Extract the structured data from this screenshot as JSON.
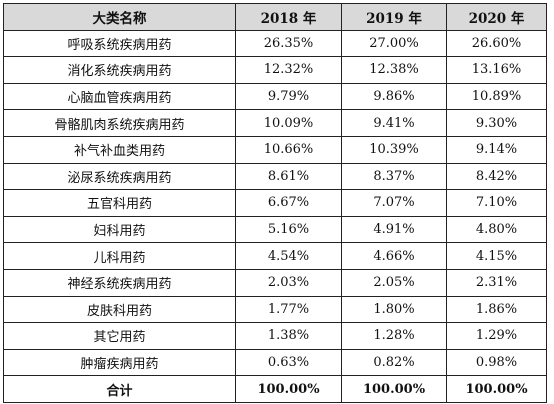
{
  "table": {
    "headers": [
      "大类名称",
      "2018 年",
      "2019 年",
      "2020 年"
    ],
    "rows": [
      [
        "呼吸系统疾病用药",
        "26.35%",
        "27.00%",
        "26.60%"
      ],
      [
        "消化系统疾病用药",
        "12.32%",
        "12.38%",
        "13.16%"
      ],
      [
        "心脑血管疾病用药",
        "9.79%",
        "9.86%",
        "10.89%"
      ],
      [
        "骨骼肌肉系统疾病用药",
        "10.09%",
        "9.41%",
        "9.30%"
      ],
      [
        "补气补血类用药",
        "10.66%",
        "10.39%",
        "9.14%"
      ],
      [
        "泌尿系统疾病用药",
        "8.61%",
        "8.37%",
        "8.42%"
      ],
      [
        "五官科用药",
        "6.67%",
        "7.07%",
        "7.10%"
      ],
      [
        "妇科用药",
        "5.16%",
        "4.91%",
        "4.80%"
      ],
      [
        "儿科用药",
        "4.54%",
        "4.66%",
        "4.15%"
      ],
      [
        "神经系统疾病用药",
        "2.03%",
        "2.05%",
        "2.31%"
      ],
      [
        "皮肤科用药",
        "1.77%",
        "1.80%",
        "1.86%"
      ],
      [
        "其它用药",
        "1.38%",
        "1.28%",
        "1.29%"
      ],
      [
        "肿瘤疾病用药",
        "0.63%",
        "0.82%",
        "0.98%"
      ]
    ],
    "total": [
      "合计",
      "100.00%",
      "100.00%",
      "100.00%"
    ]
  }
}
